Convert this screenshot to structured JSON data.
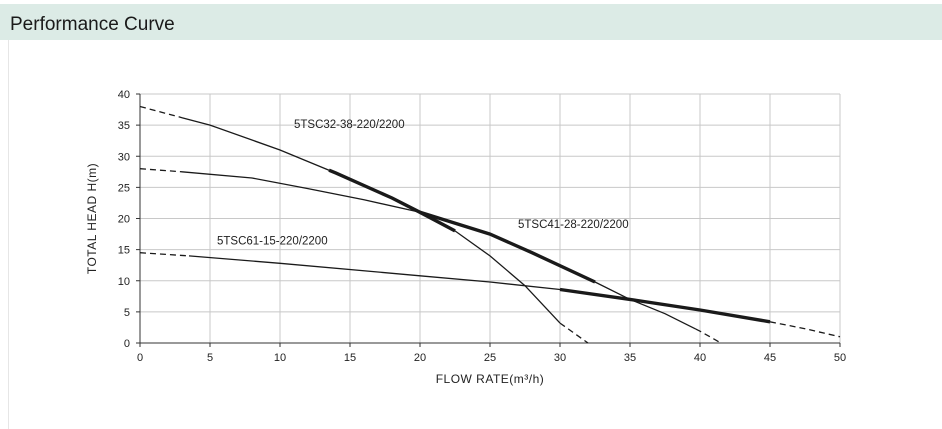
{
  "header": {
    "title": "Performance Curve"
  },
  "colors": {
    "header_bg": "#dcebe6",
    "grid": "#c8c8c8",
    "curve": "#1a1a1a"
  },
  "chart_data": {
    "type": "line",
    "title": "",
    "xlabel": "FLOW RATE(m³/h)",
    "ylabel": "TOTAL HEAD H(m)",
    "xlim": [
      0,
      50
    ],
    "ylim": [
      0,
      40
    ],
    "xticks": [
      0,
      5,
      10,
      15,
      20,
      25,
      30,
      35,
      40,
      45,
      50
    ],
    "yticks": [
      0,
      5,
      10,
      15,
      20,
      25,
      30,
      35,
      40
    ],
    "grid": true,
    "series": [
      {
        "name": "5TSC32-38-220/2200",
        "points": [
          [
            0,
            38
          ],
          [
            3,
            36.2
          ],
          [
            5,
            35
          ],
          [
            10,
            31
          ],
          [
            14,
            27.3
          ],
          [
            18,
            23.3
          ],
          [
            20,
            21
          ],
          [
            22.5,
            18
          ],
          [
            25,
            14
          ],
          [
            27.5,
            9.2
          ],
          [
            30,
            3.2
          ],
          [
            32,
            0
          ]
        ],
        "dashed_start_to": 3,
        "dashed_end_from": 30,
        "bold_range": [
          13.5,
          22.5
        ],
        "label_at": [
          11,
          34.5
        ]
      },
      {
        "name": "5TSC41-28-220/2200",
        "points": [
          [
            0,
            28
          ],
          [
            3,
            27.5
          ],
          [
            8,
            26.5
          ],
          [
            12,
            24.8
          ],
          [
            16,
            23
          ],
          [
            20,
            21
          ],
          [
            25,
            17.5
          ],
          [
            28,
            14.5
          ],
          [
            32.5,
            9.8
          ],
          [
            35,
            7
          ],
          [
            37.5,
            4.7
          ],
          [
            40,
            1.9
          ],
          [
            41.5,
            0
          ]
        ],
        "dashed_start_to": 3,
        "dashed_end_from": 39.7,
        "bold_range": [
          20,
          32.5
        ],
        "label_at": [
          27,
          18.5
        ]
      },
      {
        "name": "5TSC61-15-220/2200",
        "points": [
          [
            0,
            14.5
          ],
          [
            3.5,
            14
          ],
          [
            10,
            12.8
          ],
          [
            20,
            10.8
          ],
          [
            25,
            9.8
          ],
          [
            30,
            8.6
          ],
          [
            35,
            7
          ],
          [
            40,
            5.3
          ],
          [
            45,
            3.4
          ],
          [
            47.5,
            2.3
          ],
          [
            50,
            1
          ]
        ],
        "dashed_start_to": 3.5,
        "dashed_end_from": 45,
        "bold_range": [
          30,
          45
        ],
        "label_at": [
          5.5,
          15.8
        ]
      }
    ]
  }
}
